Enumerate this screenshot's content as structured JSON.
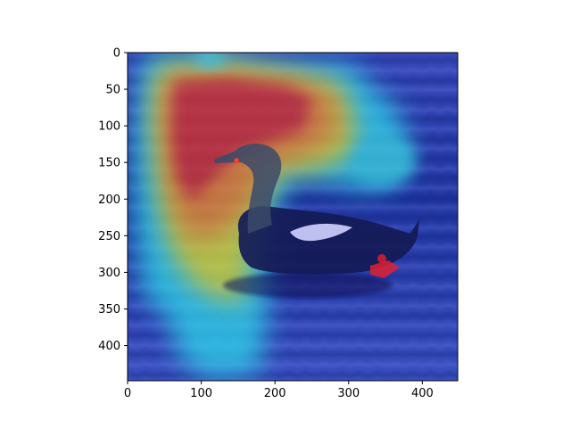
{
  "figure": {
    "background": "#ffffff"
  },
  "image": {
    "content": "duck swimming on rippled water with Grad-CAM style attention heatmap overlay",
    "colormap": "jet",
    "water_color": "#1e2e8a",
    "duck_color": "#121640"
  },
  "axes": {
    "xlim": [
      0,
      448
    ],
    "ylim": [
      448,
      0
    ],
    "x_ticks": [
      {
        "value": 0,
        "label": "0"
      },
      {
        "value": 100,
        "label": "100"
      },
      {
        "value": 200,
        "label": "200"
      },
      {
        "value": 300,
        "label": "300"
      },
      {
        "value": 400,
        "label": "400"
      }
    ],
    "y_ticks": [
      {
        "value": 0,
        "label": "0"
      },
      {
        "value": 50,
        "label": "50"
      },
      {
        "value": 100,
        "label": "100"
      },
      {
        "value": 150,
        "label": "150"
      },
      {
        "value": 200,
        "label": "200"
      },
      {
        "value": 250,
        "label": "250"
      },
      {
        "value": 300,
        "label": "300"
      },
      {
        "value": 350,
        "label": "350"
      },
      {
        "value": 400,
        "label": "400"
      }
    ]
  }
}
